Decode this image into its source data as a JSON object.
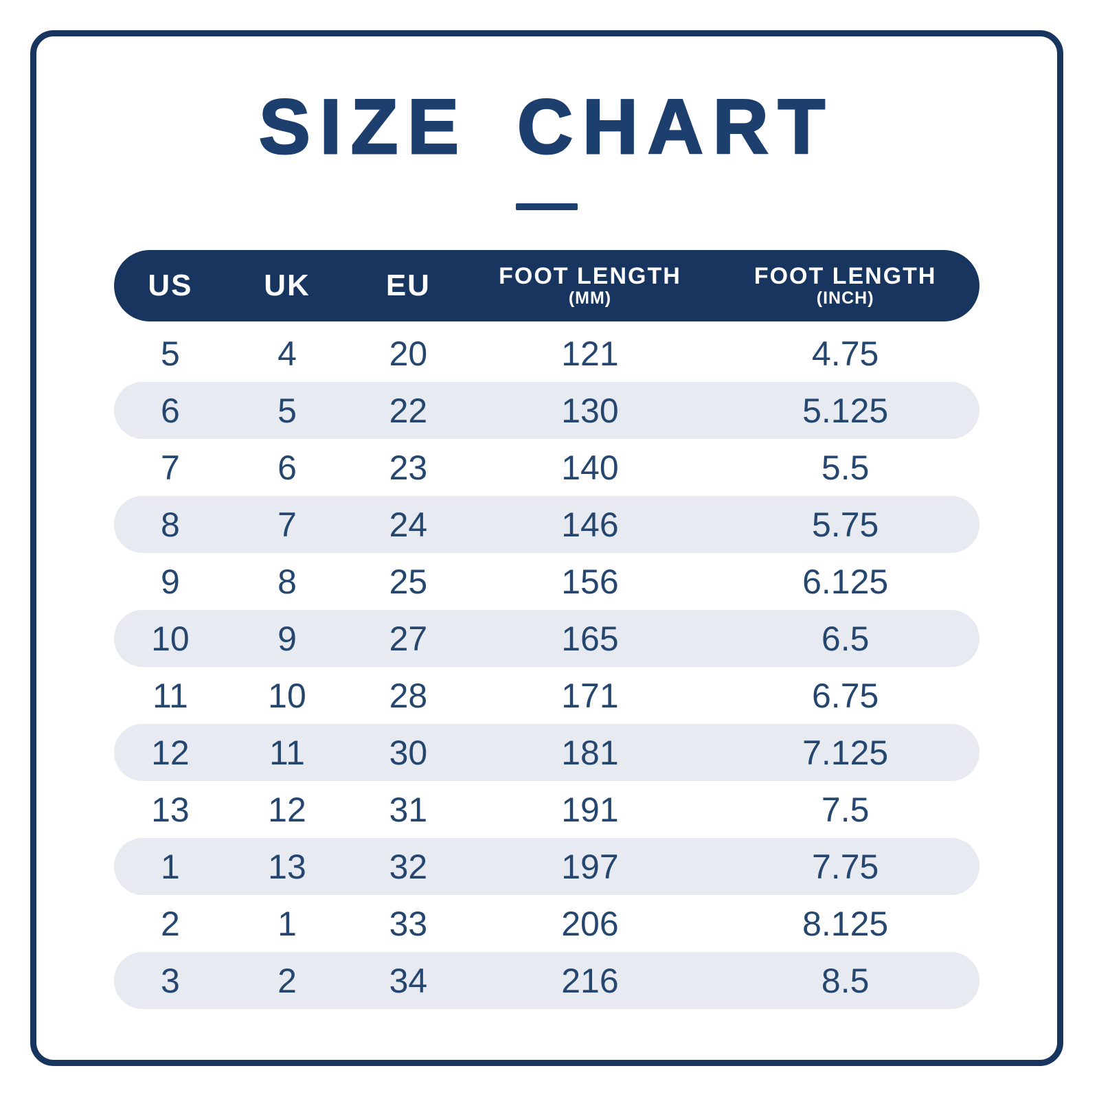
{
  "title": "SIZE CHART",
  "colors": {
    "navy_border": "#17355e",
    "navy_title": "#1c3f6e",
    "navy_text": "#24466f",
    "header_bg": "#17355e",
    "header_text": "#ffffff",
    "stripe_bg": "#e7eaf0",
    "page_bg": "#ffffff"
  },
  "table": {
    "headers": [
      {
        "label": "US",
        "sub": ""
      },
      {
        "label": "UK",
        "sub": ""
      },
      {
        "label": "EU",
        "sub": ""
      },
      {
        "label": "FOOT LENGTH",
        "sub": "(MM)"
      },
      {
        "label": "FOOT LENGTH",
        "sub": "(INCH)"
      }
    ]
  },
  "chart_data": {
    "type": "table",
    "title": "SIZE CHART",
    "columns": [
      "US",
      "UK",
      "EU",
      "FOOT LENGTH (MM)",
      "FOOT LENGTH (INCH)"
    ],
    "rows": [
      [
        "5",
        "4",
        "20",
        "121",
        "4.75"
      ],
      [
        "6",
        "5",
        "22",
        "130",
        "5.125"
      ],
      [
        "7",
        "6",
        "23",
        "140",
        "5.5"
      ],
      [
        "8",
        "7",
        "24",
        "146",
        "5.75"
      ],
      [
        "9",
        "8",
        "25",
        "156",
        "6.125"
      ],
      [
        "10",
        "9",
        "27",
        "165",
        "6.5"
      ],
      [
        "11",
        "10",
        "28",
        "171",
        "6.75"
      ],
      [
        "12",
        "11",
        "30",
        "181",
        "7.125"
      ],
      [
        "13",
        "12",
        "31",
        "191",
        "7.5"
      ],
      [
        "1",
        "13",
        "32",
        "197",
        "7.75"
      ],
      [
        "2",
        "1",
        "33",
        "206",
        "8.125"
      ],
      [
        "3",
        "2",
        "34",
        "216",
        "8.5"
      ]
    ],
    "layout": {
      "striped_row_indices": [
        1,
        3,
        5,
        7,
        9,
        11
      ],
      "grid": false,
      "legend": "none"
    }
  }
}
